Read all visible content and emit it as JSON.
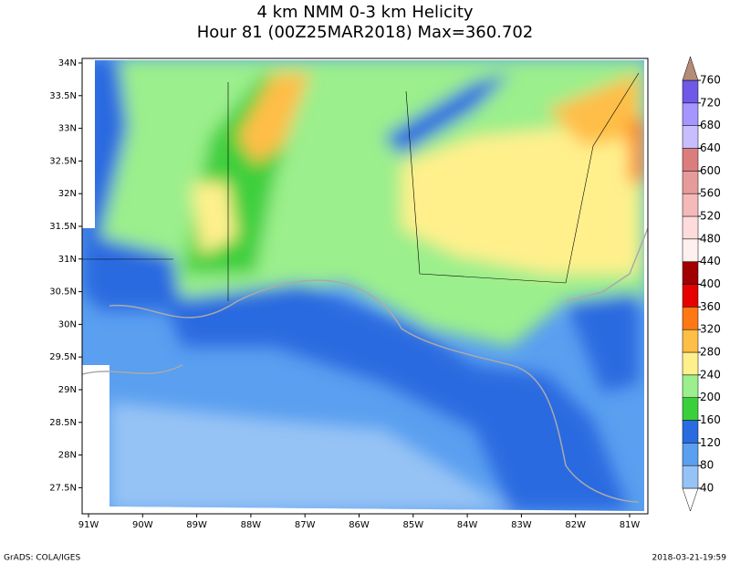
{
  "header": {
    "title": "4 km NMM 0-3 km Helicity",
    "subtitle": "Hour 81 (00Z25MAR2018) Max=360.702"
  },
  "map": {
    "lon_labels": [
      "91W",
      "90W",
      "89W",
      "88W",
      "87W",
      "86W",
      "85W",
      "84W",
      "83W",
      "82W",
      "81W"
    ],
    "lat_labels": [
      "34N",
      "33.5N",
      "33N",
      "32.5N",
      "32N",
      "31.5N",
      "31N",
      "30.5N",
      "30N",
      "29.5N",
      "29N",
      "28.5N",
      "28N",
      "27.5N"
    ]
  },
  "colorbar": {
    "levels": [
      40,
      80,
      120,
      160,
      200,
      240,
      280,
      320,
      360,
      400,
      440,
      480,
      520,
      560,
      600,
      640,
      680,
      720,
      760
    ],
    "colors": [
      "#ffffff",
      "#96c3f5",
      "#5a9ff0",
      "#2a6be0",
      "#3ccf3c",
      "#9bef8c",
      "#fff08c",
      "#ffbe46",
      "#ff7814",
      "#e60000",
      "#a00000",
      "#fff0f0",
      "#ffdcdc",
      "#f5b9b9",
      "#e69b9b",
      "#dc7d7d",
      "#c8beff",
      "#a596ff",
      "#6e5ae6",
      "#b48c78"
    ]
  },
  "footer": {
    "left": "GrADS: COLA/IGES",
    "right": "2018-03-21-19:59"
  }
}
